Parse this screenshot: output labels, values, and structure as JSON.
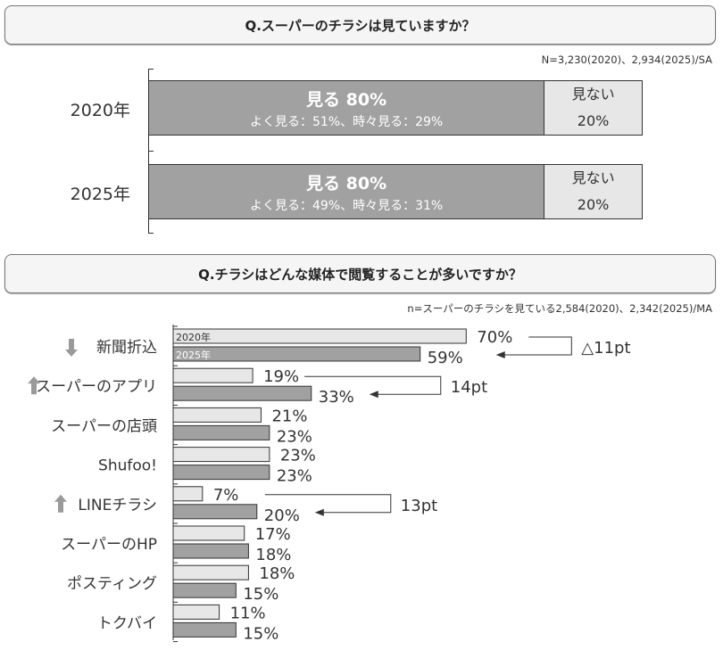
{
  "colors": {
    "y2020": "#e6e7e6",
    "y2025": "#a0a1a0",
    "axis": "#333333",
    "arrow_up_down": "#9a9a9a"
  },
  "top": {
    "question": "Q.スーパーのチラシは見ていますか？",
    "note": "N=3,230(2020)、2,934(2025)/SA",
    "rows": [
      {
        "year": "2020年",
        "see_label": "見る 80%",
        "see_value": 80,
        "see_detail": "よく見る：51%、時々見る：29%",
        "notsee_label": "見ない",
        "notsee_pct": "20%",
        "notsee_value": 20
      },
      {
        "year": "2025年",
        "see_label": "見る 80%",
        "see_value": 80,
        "see_detail": "よく見る：49%、時々見る：31%",
        "notsee_label": "見ない",
        "notsee_pct": "20%",
        "notsee_value": 20
      }
    ]
  },
  "chart_data": {
    "type": "bar",
    "title": "Q.チラシはどんな媒体で閲覧することが多いですか？",
    "note": "n=スーパーのチラシを見ている2,584(2020)、2,342(2025)/MA",
    "categories": [
      "新聞折込",
      "スーパーのアプリ",
      "スーパーの店頭",
      "Shufoo!",
      "LINEチラシ",
      "スーパーのHP",
      "ポスティング",
      "トクバイ"
    ],
    "trend_icons": [
      "arrow-down",
      "arrow-up",
      "",
      "",
      "arrow-up",
      "",
      "",
      ""
    ],
    "series": [
      {
        "name": "2020年",
        "values": [
          70,
          19,
          21,
          23,
          7,
          17,
          18,
          11
        ]
      },
      {
        "name": "2025年",
        "values": [
          59,
          33,
          23,
          23,
          20,
          18,
          15,
          15
        ]
      }
    ],
    "value_suffix": "%",
    "annotations": [
      {
        "category": "新聞折込",
        "text": "△11pt"
      },
      {
        "category": "スーパーのアプリ",
        "text": "14pt"
      },
      {
        "category": "LINEチラシ",
        "text": "13pt"
      }
    ]
  }
}
